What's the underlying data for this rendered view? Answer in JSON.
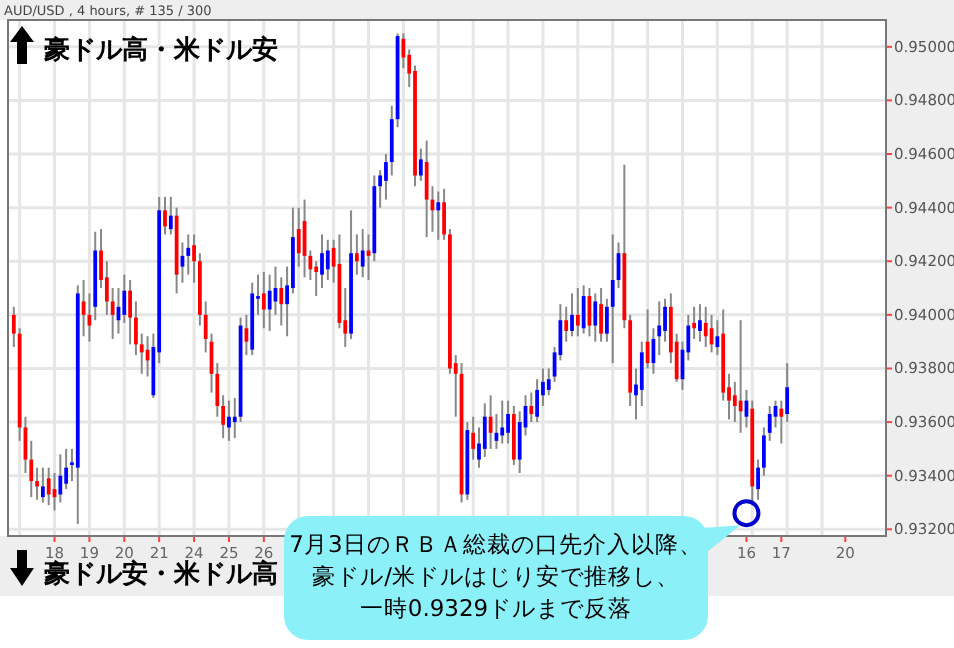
{
  "chart_data": {
    "type": "candlestick",
    "title": "AUD/USD , 4 hours, # 135 / 300",
    "categories": [
      null,
      null,
      null,
      null,
      null,
      null,
      null,
      "18",
      null,
      null,
      null,
      null,
      null,
      "19",
      null,
      null,
      null,
      null,
      null,
      "20",
      null,
      null,
      null,
      null,
      null,
      "21",
      null,
      null,
      null,
      null,
      null,
      "24",
      null,
      null,
      null,
      null,
      null,
      "25",
      null,
      null,
      null,
      null,
      null,
      "26",
      null,
      null,
      null,
      null,
      null,
      null,
      null,
      null,
      null,
      null,
      null,
      null,
      null,
      null,
      null,
      null,
      null,
      null,
      null,
      null,
      null,
      null,
      null,
      null,
      null,
      null,
      null,
      null,
      null,
      null,
      null,
      null,
      null,
      null,
      null,
      null,
      null,
      null,
      null,
      null,
      null,
      null,
      null,
      null,
      null,
      null,
      null,
      null,
      null,
      null,
      null,
      null,
      null,
      null,
      null,
      null,
      null,
      null,
      null,
      null,
      null,
      null,
      null,
      null,
      null,
      null,
      null,
      null,
      null,
      null,
      null,
      null,
      null,
      null,
      null,
      null,
      null,
      null,
      null,
      null,
      null,
      null,
      "16",
      null,
      null,
      null,
      null,
      null,
      "17",
      null,
      null,
      null,
      null,
      null,
      null,
      null,
      null,
      null,
      null,
      "20"
    ],
    "ohlc": [
      [
        0.94,
        0.9403,
        0.9388,
        0.9393
      ],
      [
        0.9393,
        0.9395,
        0.9353,
        0.9358
      ],
      [
        0.9358,
        0.9362,
        0.9341,
        0.9346
      ],
      [
        0.9346,
        0.9353,
        0.9332,
        0.9338
      ],
      [
        0.9338,
        0.9343,
        0.9331,
        0.9336
      ],
      [
        0.9332,
        0.9343,
        0.933,
        0.9336
      ],
      [
        0.9339,
        0.9343,
        0.9329,
        0.9333
      ],
      [
        0.9335,
        0.9341,
        0.9327,
        0.9332
      ],
      [
        0.9333,
        0.9348,
        0.933,
        0.934
      ],
      [
        0.9337,
        0.935,
        0.9335,
        0.9343
      ],
      [
        0.9344,
        0.935,
        0.9338,
        0.9345
      ],
      [
        0.9343,
        0.9411,
        0.9322,
        0.9408
      ],
      [
        0.9405,
        0.9413,
        0.9392,
        0.94
      ],
      [
        0.94,
        0.9408,
        0.939,
        0.9396
      ],
      [
        0.9403,
        0.9431,
        0.9398,
        0.9424
      ],
      [
        0.9424,
        0.9432,
        0.941,
        0.9413
      ],
      [
        0.9414,
        0.942,
        0.94,
        0.9405
      ],
      [
        0.9405,
        0.941,
        0.9391,
        0.94
      ],
      [
        0.9398,
        0.941,
        0.9393,
        0.9403
      ],
      [
        0.94,
        0.9415,
        0.9397,
        0.9409
      ],
      [
        0.9409,
        0.9413,
        0.9389,
        0.9399
      ],
      [
        0.9399,
        0.9405,
        0.9385,
        0.9389
      ],
      [
        0.9389,
        0.9393,
        0.9378,
        0.9386
      ],
      [
        0.9387,
        0.9392,
        0.9377,
        0.9383
      ],
      [
        0.937,
        0.9393,
        0.9369,
        0.9388
      ],
      [
        0.9386,
        0.9444,
        0.9382,
        0.9439
      ],
      [
        0.9439,
        0.9444,
        0.943,
        0.9433
      ],
      [
        0.9432,
        0.9444,
        0.943,
        0.9437
      ],
      [
        0.9437,
        0.944,
        0.9408,
        0.9415
      ],
      [
        0.9418,
        0.9427,
        0.9412,
        0.9422
      ],
      [
        0.9422,
        0.943,
        0.9415,
        0.9425
      ],
      [
        0.9426,
        0.943,
        0.9412,
        0.942
      ],
      [
        0.942,
        0.9423,
        0.9396,
        0.94
      ],
      [
        0.94,
        0.9405,
        0.9386,
        0.9391
      ],
      [
        0.939,
        0.9393,
        0.9371,
        0.9378
      ],
      [
        0.9378,
        0.9382,
        0.9362,
        0.9366
      ],
      [
        0.9366,
        0.937,
        0.9354,
        0.9359
      ],
      [
        0.9358,
        0.9368,
        0.9353,
        0.9362
      ],
      [
        0.936,
        0.9369,
        0.9354,
        0.9362
      ],
      [
        0.9362,
        0.9399,
        0.936,
        0.9396
      ],
      [
        0.9395,
        0.94,
        0.9385,
        0.939
      ],
      [
        0.9387,
        0.9412,
        0.9385,
        0.9408
      ],
      [
        0.9406,
        0.9415,
        0.94,
        0.9407
      ],
      [
        0.9408,
        0.9416,
        0.9395,
        0.9402
      ],
      [
        0.9402,
        0.9415,
        0.9394,
        0.9409
      ],
      [
        0.9405,
        0.9418,
        0.94,
        0.941
      ],
      [
        0.941,
        0.9414,
        0.9396,
        0.9404
      ],
      [
        0.9404,
        0.9418,
        0.9392,
        0.9411
      ],
      [
        0.941,
        0.944,
        0.9408,
        0.9429
      ],
      [
        0.9432,
        0.944,
        0.9418,
        0.9423
      ],
      [
        0.9435,
        0.9443,
        0.9414,
        0.9422
      ],
      [
        0.9422,
        0.9424,
        0.9413,
        0.9417
      ],
      [
        0.9418,
        0.942,
        0.9407,
        0.9416
      ],
      [
        0.9415,
        0.943,
        0.941,
        0.9423
      ],
      [
        0.9417,
        0.9428,
        0.9413,
        0.9424
      ],
      [
        0.9425,
        0.9428,
        0.9412,
        0.9418
      ],
      [
        0.9419,
        0.943,
        0.9395,
        0.9397
      ],
      [
        0.9398,
        0.941,
        0.9388,
        0.9393
      ],
      [
        0.9393,
        0.9439,
        0.9391,
        0.9423
      ],
      [
        0.9423,
        0.943,
        0.9415,
        0.942
      ],
      [
        0.9418,
        0.9432,
        0.9414,
        0.9424
      ],
      [
        0.9424,
        0.943,
        0.9413,
        0.9422
      ],
      [
        0.9423,
        0.9452,
        0.942,
        0.9448
      ],
      [
        0.9448,
        0.9454,
        0.944,
        0.9452
      ],
      [
        0.945,
        0.946,
        0.9443,
        0.9457
      ],
      [
        0.9457,
        0.9478,
        0.9452,
        0.9473
      ],
      [
        0.9473,
        0.9505,
        0.947,
        0.9504
      ],
      [
        0.9503,
        0.9505,
        0.9492,
        0.9496
      ],
      [
        0.9497,
        0.9499,
        0.9485,
        0.949
      ],
      [
        0.9491,
        0.9493,
        0.9448,
        0.9452
      ],
      [
        0.9452,
        0.9462,
        0.945,
        0.9458
      ],
      [
        0.9457,
        0.9465,
        0.9429,
        0.9443
      ],
      [
        0.9443,
        0.9448,
        0.9431,
        0.9439
      ],
      [
        0.9439,
        0.9446,
        0.9428,
        0.9442
      ],
      [
        0.9442,
        0.9447,
        0.9428,
        0.943
      ],
      [
        0.943,
        0.9432,
        0.9378,
        0.938
      ],
      [
        0.9382,
        0.9385,
        0.9362,
        0.9378
      ],
      [
        0.9378,
        0.9382,
        0.933,
        0.9333
      ],
      [
        0.9333,
        0.936,
        0.9331,
        0.9357
      ],
      [
        0.9356,
        0.9362,
        0.9346,
        0.935
      ],
      [
        0.9346,
        0.9358,
        0.9343,
        0.9352
      ],
      [
        0.935,
        0.9367,
        0.9347,
        0.9362
      ],
      [
        0.9362,
        0.937,
        0.935,
        0.9356
      ],
      [
        0.9353,
        0.9363,
        0.935,
        0.9356
      ],
      [
        0.9355,
        0.9368,
        0.9352,
        0.9358
      ],
      [
        0.9356,
        0.9368,
        0.9352,
        0.9363
      ],
      [
        0.9363,
        0.9366,
        0.9344,
        0.9346
      ],
      [
        0.9346,
        0.9364,
        0.9341,
        0.936
      ],
      [
        0.9358,
        0.937,
        0.9355,
        0.9366
      ],
      [
        0.9366,
        0.9371,
        0.936,
        0.9363
      ],
      [
        0.9362,
        0.9376,
        0.936,
        0.9372
      ],
      [
        0.937,
        0.938,
        0.9366,
        0.9375
      ],
      [
        0.9372,
        0.938,
        0.937,
        0.9376
      ],
      [
        0.9377,
        0.9388,
        0.9375,
        0.9386
      ],
      [
        0.9385,
        0.9404,
        0.9383,
        0.9398
      ],
      [
        0.9398,
        0.9403,
        0.939,
        0.9394
      ],
      [
        0.9394,
        0.9408,
        0.9392,
        0.94
      ],
      [
        0.94,
        0.941,
        0.9392,
        0.9396
      ],
      [
        0.9395,
        0.9411,
        0.9393,
        0.9407
      ],
      [
        0.9407,
        0.941,
        0.9392,
        0.9396
      ],
      [
        0.9396,
        0.9408,
        0.939,
        0.9405
      ],
      [
        0.9404,
        0.941,
        0.939,
        0.9393
      ],
      [
        0.9393,
        0.9406,
        0.939,
        0.9403
      ],
      [
        0.9403,
        0.943,
        0.9382,
        0.9413
      ],
      [
        0.9413,
        0.9427,
        0.941,
        0.9423
      ],
      [
        0.9423,
        0.9456,
        0.9395,
        0.9398
      ],
      [
        0.9398,
        0.94,
        0.9366,
        0.9371
      ],
      [
        0.937,
        0.938,
        0.9361,
        0.9374
      ],
      [
        0.9372,
        0.939,
        0.9366,
        0.9386
      ],
      [
        0.939,
        0.9402,
        0.938,
        0.9382
      ],
      [
        0.9382,
        0.9395,
        0.9378,
        0.9391
      ],
      [
        0.9392,
        0.9405,
        0.9385,
        0.9396
      ],
      [
        0.9394,
        0.9406,
        0.939,
        0.9403
      ],
      [
        0.9403,
        0.9408,
        0.9382,
        0.9386
      ],
      [
        0.939,
        0.9393,
        0.9375,
        0.9376
      ],
      [
        0.9376,
        0.939,
        0.9372,
        0.9387
      ],
      [
        0.9386,
        0.94,
        0.9383,
        0.9396
      ],
      [
        0.9397,
        0.9403,
        0.9391,
        0.9395
      ],
      [
        0.9394,
        0.9404,
        0.939,
        0.9398
      ],
      [
        0.9397,
        0.9403,
        0.9388,
        0.9392
      ],
      [
        0.9395,
        0.94,
        0.9386,
        0.9389
      ],
      [
        0.9388,
        0.9398,
        0.9385,
        0.9392
      ],
      [
        0.9393,
        0.9402,
        0.9368,
        0.9371
      ],
      [
        0.9373,
        0.9378,
        0.9361,
        0.9368
      ],
      [
        0.937,
        0.9375,
        0.936,
        0.9366
      ],
      [
        0.9368,
        0.9398,
        0.9356,
        0.9364
      ],
      [
        0.9362,
        0.9372,
        0.9358,
        0.9368
      ],
      [
        0.9365,
        0.9368,
        0.9329,
        0.9336
      ],
      [
        0.9335,
        0.9346,
        0.9331,
        0.9343
      ],
      [
        0.9343,
        0.9358,
        0.934,
        0.9355
      ],
      [
        0.9356,
        0.9366,
        0.9353,
        0.9363
      ],
      [
        0.9362,
        0.9368,
        0.9358,
        0.9366
      ],
      [
        0.9365,
        0.9368,
        0.9352,
        0.9362
      ],
      [
        0.9363,
        0.9382,
        0.936,
        0.9373
      ],
      null,
      null,
      null,
      null,
      null,
      null,
      null,
      null,
      null,
      null
    ],
    "colors": [
      "#ff0000",
      "#ff0000",
      "#ff0000",
      "#ff0000",
      "#ff0000",
      "#0000ff",
      "#ff0000",
      "#ff0000",
      "#0000ff",
      "#0000ff",
      "#0000ff",
      "#0000ff",
      "#ff0000",
      "#ff0000",
      "#0000ff",
      "#ff0000",
      "#ff0000",
      "#ff0000",
      "#0000ff",
      "#0000ff",
      "#ff0000",
      "#ff0000",
      "#ff0000",
      "#ff0000",
      "#0000ff",
      "#0000ff",
      "#ff0000",
      "#0000ff",
      "#ff0000",
      "#0000ff",
      "#0000ff",
      "#ff0000",
      "#ff0000",
      "#ff0000",
      "#ff0000",
      "#ff0000",
      "#ff0000",
      "#0000ff",
      "#0000ff",
      "#0000ff",
      "#ff0000",
      "#0000ff",
      "#0000ff",
      "#ff0000",
      "#0000ff",
      "#0000ff",
      "#ff0000",
      "#0000ff",
      "#0000ff",
      "#ff0000",
      "#ff0000",
      "#ff0000",
      "#ff0000",
      "#0000ff",
      "#0000ff",
      "#ff0000",
      "#ff0000",
      "#ff0000",
      "#0000ff",
      "#ff0000",
      "#0000ff",
      "#ff0000",
      "#0000ff",
      "#0000ff",
      "#0000ff",
      "#0000ff",
      "#0000ff",
      "#ff0000",
      "#ff0000",
      "#ff0000",
      "#0000ff",
      "#ff0000",
      "#ff0000",
      "#0000ff",
      "#ff0000",
      "#ff0000",
      "#ff0000",
      "#ff0000",
      "#0000ff",
      "#ff0000",
      "#0000ff",
      "#0000ff",
      "#ff0000",
      "#0000ff",
      "#0000ff",
      "#0000ff",
      "#ff0000",
      "#0000ff",
      "#0000ff",
      "#ff0000",
      "#0000ff",
      "#0000ff",
      "#0000ff",
      "#0000ff",
      "#0000ff",
      "#ff0000",
      "#0000ff",
      "#ff0000",
      "#0000ff",
      "#ff0000",
      "#0000ff",
      "#ff0000",
      "#0000ff",
      "#0000ff",
      "#0000ff",
      "#ff0000",
      "#ff0000",
      "#0000ff",
      "#0000ff",
      "#ff0000",
      "#0000ff",
      "#0000ff",
      "#0000ff",
      "#ff0000",
      "#ff0000",
      "#0000ff",
      "#0000ff",
      "#ff0000",
      "#0000ff",
      "#ff0000",
      "#ff0000",
      "#0000ff",
      "#ff0000",
      "#ff0000",
      "#ff0000",
      "#ff0000",
      "#0000ff",
      "#ff0000",
      "#0000ff",
      "#0000ff",
      "#0000ff",
      "#0000ff",
      "#ff0000",
      "#0000ff",
      null,
      null,
      null,
      null,
      null,
      null,
      null,
      null,
      null,
      null
    ],
    "ylim": [
      0.93175,
      0.951
    ],
    "yticks": [
      {
        "value": 0.932,
        "label": "0.93200"
      },
      {
        "value": 0.934,
        "label": "0.93400"
      },
      {
        "value": 0.936,
        "label": "0.93600"
      },
      {
        "value": 0.938,
        "label": "0.93800"
      },
      {
        "value": 0.94,
        "label": "0.94000"
      },
      {
        "value": 0.942,
        "label": "0.94200"
      },
      {
        "value": 0.944,
        "label": "0.94400"
      },
      {
        "value": 0.946,
        "label": "0.94600"
      },
      {
        "value": 0.948,
        "label": "0.94800"
      },
      {
        "value": 0.95,
        "label": "0.95000"
      }
    ],
    "grid": true,
    "annotations": [
      "豪ドル高・米ドル安",
      "豪ドル安・米ドル高",
      {
        "text": "7月3日のＲＢＡ総裁の口先介入以降、豪ドル/米ドルはじり安で推移し、一時0.9329ドルまで反落",
        "x": "16",
        "y": 0.9329
      }
    ]
  }
}
